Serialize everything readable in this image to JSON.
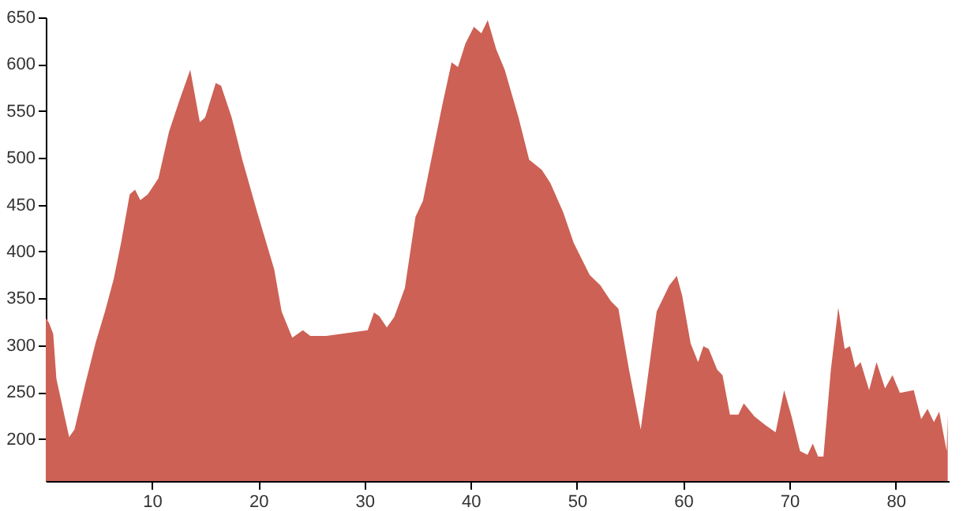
{
  "chart_data": {
    "type": "area",
    "x": [
      0,
      0.3,
      0.7,
      1.0,
      2.2,
      2.7,
      3.7,
      4.7,
      5.6,
      6.4,
      7.1,
      7.9,
      8.4,
      8.9,
      9.6,
      10.6,
      11.6,
      12.6,
      13.6,
      14.5,
      15.0,
      16.0,
      16.5,
      17.5,
      18.5,
      19.9,
      21.5,
      22.2,
      23.2,
      24.2,
      24.9,
      26.4,
      30.3,
      30.9,
      31.4,
      32.1,
      32.8,
      33.8,
      34.8,
      35.5,
      37.3,
      38.2,
      38.8,
      39.5,
      40.3,
      41.0,
      41.6,
      42.4,
      43.2,
      44.5,
      45.5,
      46.7,
      47.5,
      48.7,
      49.7,
      51.2,
      52.2,
      53.2,
      53.9,
      54.9,
      56.0,
      56.5,
      57.5,
      58.7,
      59.4,
      59.9,
      60.7,
      61.4,
      61.9,
      62.4,
      63.2,
      63.7,
      64.4,
      65.2,
      65.7,
      66.7,
      67.7,
      68.7,
      69.5,
      70.2,
      71.0,
      71.7,
      72.2,
      72.7,
      73.2,
      73.9,
      74.6,
      75.2,
      75.7,
      76.2,
      76.7,
      77.5,
      78.2,
      79.0,
      79.7,
      80.4,
      81.7,
      82.4,
      83.0,
      83.6,
      84.1,
      84.8,
      84.9
    ],
    "series": [
      {
        "color": "#cd6155",
        "values": [
          329,
          324,
          312,
          264,
          202,
          210,
          258,
          303,
          337,
          371,
          410,
          461,
          466,
          455,
          461,
          478,
          528,
          562,
          594,
          538,
          543,
          580,
          577,
          543,
          498,
          442,
          381,
          336,
          308,
          316,
          310,
          310,
          316,
          335,
          331,
          319,
          330,
          361,
          437,
          454,
          555,
          602,
          597,
          622,
          640,
          633,
          647,
          616,
          594,
          543,
          498,
          487,
          473,
          442,
          409,
          375,
          364,
          347,
          339,
          274,
          210,
          252,
          336,
          364,
          374,
          353,
          302,
          282,
          299,
          296,
          274,
          268,
          226,
          226,
          238,
          224,
          215,
          207,
          252,
          224,
          187,
          183,
          195,
          181,
          181,
          274,
          340,
          296,
          299,
          276,
          282,
          252,
          282,
          254,
          268,
          249,
          252,
          221,
          232,
          218,
          229,
          187,
          226
        ]
      }
    ],
    "xlim": [
      0,
      85
    ],
    "xticks": [
      10,
      20,
      30,
      40,
      50,
      60,
      70,
      80
    ],
    "ylim": [
      155,
      650
    ],
    "yticks": [
      200,
      250,
      300,
      350,
      400,
      450,
      500,
      550,
      600,
      650
    ],
    "grid": false
  }
}
